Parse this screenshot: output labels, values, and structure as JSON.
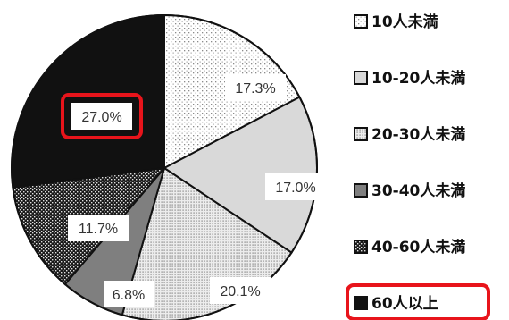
{
  "chart_data": {
    "type": "pie",
    "slices": [
      {
        "label": "10人未満",
        "value": 17.3,
        "value_label": "17.3%",
        "fill": "pattern-sparse-dots"
      },
      {
        "label": "10-20人未満",
        "value": 17.0,
        "value_label": "17.0%",
        "fill": "#d9d9d9"
      },
      {
        "label": "20-30人未満",
        "value": 20.1,
        "value_label": "20.1%",
        "fill": "pattern-dense-dots"
      },
      {
        "label": "30-40人未満",
        "value": 6.8,
        "value_label": "6.8%",
        "fill": "#7f7f7f"
      },
      {
        "label": "40-60人未満",
        "value": 11.7,
        "value_label": "11.7%",
        "fill": "pattern-checker"
      },
      {
        "label": "60人以上",
        "value": 27.0,
        "value_label": "27.0%",
        "fill": "#111111"
      }
    ],
    "start_angle_deg": 0,
    "direction": "clockwise",
    "legend_position": "right",
    "highlight": {
      "slice_index": 5,
      "color": "#e8141b"
    }
  }
}
